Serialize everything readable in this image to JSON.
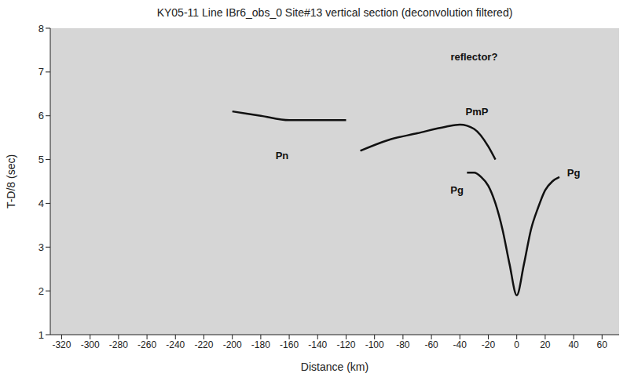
{
  "chart_data": {
    "type": "line",
    "title": "KY05-11 Line IBr6_obs_0 Site#13 vertical section (deconvolution filtered)",
    "x_label": "Distance (km)",
    "y_label": "T-D/8 (sec)",
    "xlim": [
      -328,
      72
    ],
    "xticks": [
      -320,
      -300,
      -280,
      -260,
      -240,
      -220,
      -200,
      -180,
      -160,
      -140,
      -120,
      -100,
      -80,
      -60,
      -40,
      -20,
      0,
      20,
      40,
      60
    ],
    "ylim": [
      1,
      8
    ],
    "yticks": [
      1,
      2,
      3,
      4,
      5,
      6,
      7,
      8
    ],
    "grid": false,
    "series": [
      {
        "name": "Pg",
        "color": "#111111",
        "x": [
          -35,
          -30,
          -25,
          -20,
          -15,
          -10,
          -5,
          0,
          5,
          10,
          15,
          20,
          25,
          30
        ],
        "values": [
          4.7,
          4.7,
          4.6,
          4.4,
          4.0,
          3.4,
          2.6,
          1.9,
          2.6,
          3.4,
          3.9,
          4.3,
          4.5,
          4.6
        ],
        "labels": [
          [
            -42,
            4.3
          ],
          [
            40,
            4.7
          ]
        ]
      },
      {
        "name": "PmP",
        "color": "#111111",
        "x": [
          -110,
          -90,
          -70,
          -50,
          -40,
          -30,
          -20,
          -15
        ],
        "values": [
          5.2,
          5.45,
          5.6,
          5.75,
          5.8,
          5.7,
          5.3,
          5.0
        ],
        "labels": [
          [
            -28,
            6.1
          ]
        ]
      },
      {
        "name": "Pn",
        "color": "#111111",
        "x": [
          -200,
          -180,
          -160,
          -140,
          -120
        ],
        "values": [
          6.1,
          6.0,
          5.9,
          5.9,
          5.9
        ],
        "labels": [
          [
            -165,
            5.1
          ]
        ]
      }
    ],
    "annotations": [
      {
        "text": "reflector?",
        "x": -30,
        "y": 7.35
      }
    ]
  }
}
